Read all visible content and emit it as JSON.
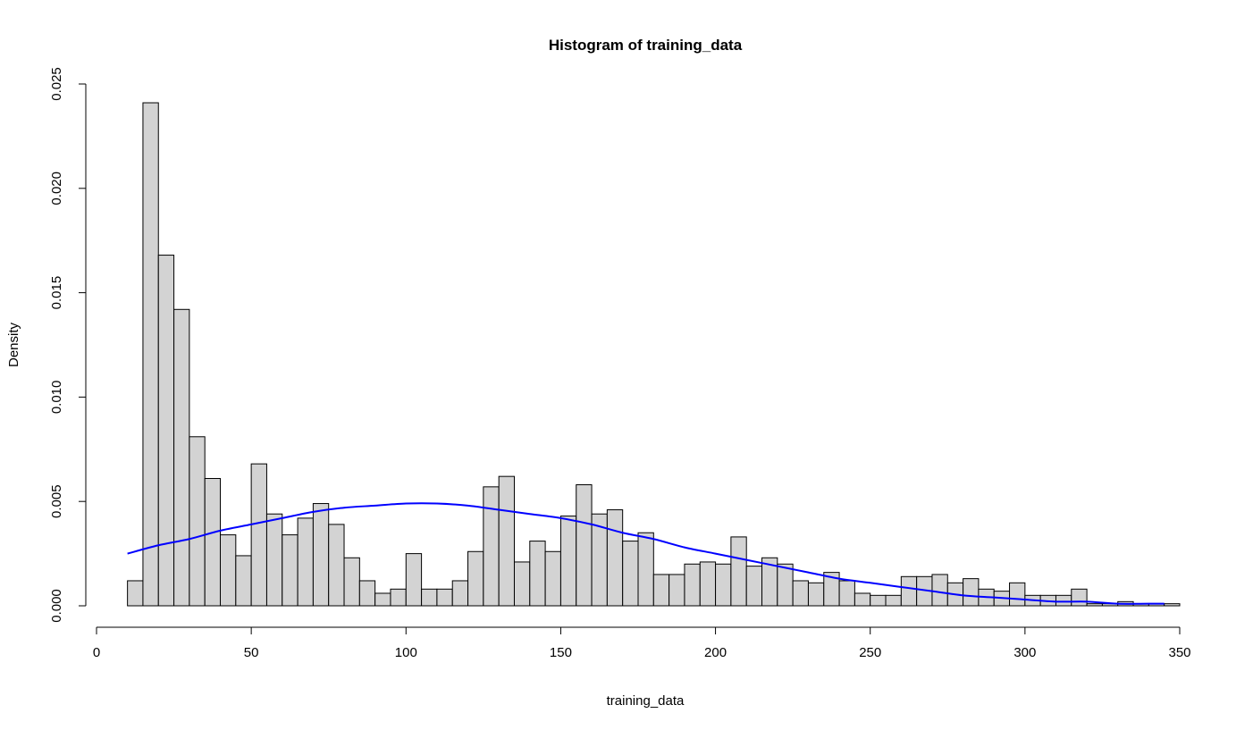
{
  "chart_data": {
    "type": "bar",
    "subtype": "histogram-with-density-curve",
    "title": "Histogram of training_data",
    "xlabel": "training_data",
    "ylabel": "Density",
    "xlim": [
      0,
      350
    ],
    "ylim": [
      0,
      0.025
    ],
    "x_ticks": [
      0,
      50,
      100,
      150,
      200,
      250,
      300,
      350
    ],
    "y_ticks": [
      0.0,
      0.005,
      0.01,
      0.015,
      0.02,
      0.025
    ],
    "x_tick_labels": [
      "0",
      "50",
      "100",
      "150",
      "200",
      "250",
      "300",
      "350"
    ],
    "y_tick_labels": [
      "0.000",
      "0.005",
      "0.010",
      "0.015",
      "0.020",
      "0.025"
    ],
    "bin_width": 5,
    "bin_start": 10,
    "bar_color": "#d3d3d3",
    "curve_color": "#0000ff",
    "density": [
      0.0012,
      0.0241,
      0.0168,
      0.0142,
      0.0081,
      0.0061,
      0.0034,
      0.0024,
      0.0068,
      0.0044,
      0.0034,
      0.0042,
      0.0049,
      0.0039,
      0.0023,
      0.0012,
      0.0006,
      0.0008,
      0.0025,
      0.0008,
      0.0008,
      0.0012,
      0.0026,
      0.0057,
      0.0062,
      0.0021,
      0.0031,
      0.0026,
      0.0043,
      0.0058,
      0.0044,
      0.0046,
      0.0031,
      0.0035,
      0.0015,
      0.0015,
      0.002,
      0.0021,
      0.002,
      0.0033,
      0.0019,
      0.0023,
      0.002,
      0.0012,
      0.0011,
      0.0016,
      0.0012,
      0.0006,
      0.0005,
      0.0005,
      0.0014,
      0.0014,
      0.0015,
      0.0011,
      0.0013,
      0.0008,
      0.0007,
      0.0011,
      0.0005,
      0.0005,
      0.0005,
      0.0008,
      0.0001,
      0.0001,
      0.0002,
      0.0001,
      0.0001,
      0.0001
    ],
    "curve": {
      "x": [
        10,
        20,
        30,
        40,
        50,
        60,
        70,
        80,
        90,
        100,
        110,
        120,
        130,
        140,
        150,
        160,
        170,
        180,
        190,
        200,
        210,
        220,
        230,
        240,
        250,
        260,
        270,
        280,
        290,
        300,
        310,
        320,
        330,
        340,
        345
      ],
      "y": [
        0.0025,
        0.0029,
        0.0032,
        0.0036,
        0.0039,
        0.0042,
        0.0045,
        0.0047,
        0.0048,
        0.0049,
        0.0049,
        0.0048,
        0.0046,
        0.0044,
        0.0042,
        0.0039,
        0.0035,
        0.0032,
        0.0028,
        0.0025,
        0.0022,
        0.0019,
        0.0016,
        0.0013,
        0.0011,
        0.0009,
        0.0007,
        0.0005,
        0.0004,
        0.0003,
        0.0002,
        0.0002,
        0.0001,
        0.0001,
        0.0001
      ]
    }
  }
}
